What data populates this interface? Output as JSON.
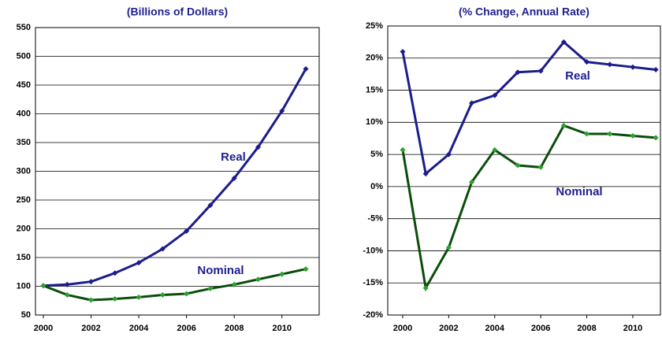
{
  "chart_data": [
    {
      "type": "line",
      "title": "(Billions of Dollars)",
      "x": [
        2000,
        2001,
        2002,
        2003,
        2004,
        2005,
        2006,
        2007,
        2008,
        2009,
        2010,
        2011
      ],
      "series": [
        {
          "name": "Real",
          "color": "#1c1c8c",
          "marker_color": "#1c1c8c",
          "values": [
            101,
            103,
            108,
            123,
            141,
            165,
            196,
            241,
            288,
            342,
            405,
            478
          ]
        },
        {
          "name": "Nominal",
          "color": "#0a4d0a",
          "marker_color": "#2e9e2e",
          "values": [
            101,
            85,
            76,
            78,
            81,
            85,
            87,
            96,
            103,
            112,
            121,
            130
          ]
        }
      ],
      "xlim": [
        1999.67,
        2011.56
      ],
      "xticks": [
        2000,
        2002,
        2004,
        2006,
        2008,
        2010
      ],
      "ylim": [
        50,
        550
      ],
      "yticks": [
        50,
        100,
        150,
        200,
        250,
        300,
        350,
        400,
        450,
        500,
        550
      ],
      "grid": true,
      "annotations": [
        "Real",
        "Nominal"
      ]
    },
    {
      "type": "line",
      "title": "(% Change, Annual Rate)",
      "x": [
        2000,
        2001,
        2002,
        2003,
        2004,
        2005,
        2006,
        2007,
        2008,
        2009,
        2010,
        2011
      ],
      "series": [
        {
          "name": "Real",
          "color": "#1c1c8c",
          "marker_color": "#1c1c8c",
          "values": [
            21,
            2,
            5,
            13,
            14.2,
            17.8,
            18,
            22.5,
            19.4,
            19,
            18.6,
            18.2
          ]
        },
        {
          "name": "Nominal",
          "color": "#0a4d0a",
          "marker_color": "#2e9e2e",
          "values": [
            5.7,
            -15.8,
            -9.5,
            0.7,
            5.7,
            3.3,
            3,
            9.5,
            8.2,
            8.2,
            7.9,
            7.6
          ]
        }
      ],
      "xlim": [
        1999.35,
        2011.2
      ],
      "xticks": [
        2000,
        2002,
        2004,
        2006,
        2008,
        2010
      ],
      "ylim": [
        -20,
        25
      ],
      "yticks": [
        {
          "value": -20,
          "label": "-20%"
        },
        {
          "value": -15,
          "label": "-15%"
        },
        {
          "value": -10,
          "label": "-10%"
        },
        {
          "value": -5,
          "label": "-5%"
        },
        {
          "value": 0,
          "label": "0%"
        },
        {
          "value": 5,
          "label": "5%"
        },
        {
          "value": 10,
          "label": "10%"
        },
        {
          "value": 15,
          "label": "15%"
        },
        {
          "value": 20,
          "label": "20%"
        },
        {
          "value": 25,
          "label": "25%"
        }
      ],
      "grid": true,
      "annotations": [
        "Real",
        "Nominal"
      ]
    }
  ]
}
